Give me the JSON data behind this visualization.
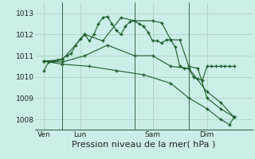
{
  "background_color": "#cceee8",
  "grid_color": "#aaccbb",
  "line_color": "#1a5c2a",
  "title": "Pression niveau de la mer( hPa )",
  "title_fontsize": 8,
  "tick_fontsize": 6.5,
  "ylim": [
    1007.5,
    1013.5
  ],
  "yticks": [
    1008,
    1009,
    1010,
    1011,
    1012,
    1013
  ],
  "day_labels": [
    "Ven",
    "Lun",
    "Sam",
    "Dim"
  ],
  "day_positions": [
    1,
    5,
    13,
    19
  ],
  "vline_positions": [
    3,
    11,
    17
  ],
  "xlim": [
    0,
    24
  ],
  "series": [
    {
      "x": [
        1.0,
        1.5,
        2.0,
        2.5,
        3.0,
        3.5,
        4.0,
        4.5,
        5.0,
        5.5,
        6.0,
        6.5,
        7.0,
        7.5,
        8.0,
        8.5,
        9.0,
        9.5,
        10.0,
        10.5,
        11.0,
        11.5,
        12.0,
        12.5,
        13.0,
        13.5,
        14.0,
        14.5,
        15.0,
        15.5,
        16.0,
        16.5,
        17.0,
        17.5,
        18.0,
        18.5,
        19.0,
        19.5,
        20.0,
        20.5,
        21.0,
        21.5,
        22.0
      ],
      "y": [
        1010.3,
        1010.7,
        1010.75,
        1010.8,
        1010.85,
        1011.0,
        1011.1,
        1011.5,
        1011.8,
        1012.0,
        1011.7,
        1012.0,
        1012.5,
        1012.8,
        1012.85,
        1012.5,
        1012.2,
        1012.0,
        1012.4,
        1012.6,
        1012.65,
        1012.5,
        1012.4,
        1012.1,
        1011.7,
        1011.7,
        1011.6,
        1011.75,
        1011.75,
        1011.4,
        1010.5,
        1010.4,
        1010.4,
        1010.0,
        1009.9,
        1009.85,
        1010.5,
        1010.5,
        1010.5,
        1010.5,
        1010.5,
        1010.5,
        1010.5
      ]
    },
    {
      "x": [
        1.0,
        3.0,
        5.5,
        7.5,
        9.5,
        11.0,
        13.0,
        14.0,
        15.0,
        16.0,
        17.0,
        18.0,
        19.0,
        20.5,
        22.0
      ],
      "y": [
        1010.75,
        1010.8,
        1012.0,
        1011.7,
        1012.8,
        1012.65,
        1012.65,
        1012.55,
        1011.75,
        1011.75,
        1010.5,
        1010.4,
        1009.0,
        1008.5,
        1008.1
      ]
    },
    {
      "x": [
        1.0,
        3.0,
        5.5,
        8.0,
        11.0,
        13.0,
        15.0,
        17.0,
        19.0,
        20.5,
        22.0
      ],
      "y": [
        1010.75,
        1010.7,
        1011.0,
        1011.5,
        1011.0,
        1011.0,
        1010.5,
        1010.4,
        1009.3,
        1008.8,
        1008.1
      ]
    },
    {
      "x": [
        1.0,
        3.0,
        6.0,
        9.0,
        12.0,
        15.0,
        17.0,
        19.0,
        20.5,
        21.5,
        22.0
      ],
      "y": [
        1010.75,
        1010.6,
        1010.5,
        1010.3,
        1010.1,
        1009.7,
        1009.0,
        1008.5,
        1008.0,
        1007.75,
        1008.1
      ]
    }
  ]
}
